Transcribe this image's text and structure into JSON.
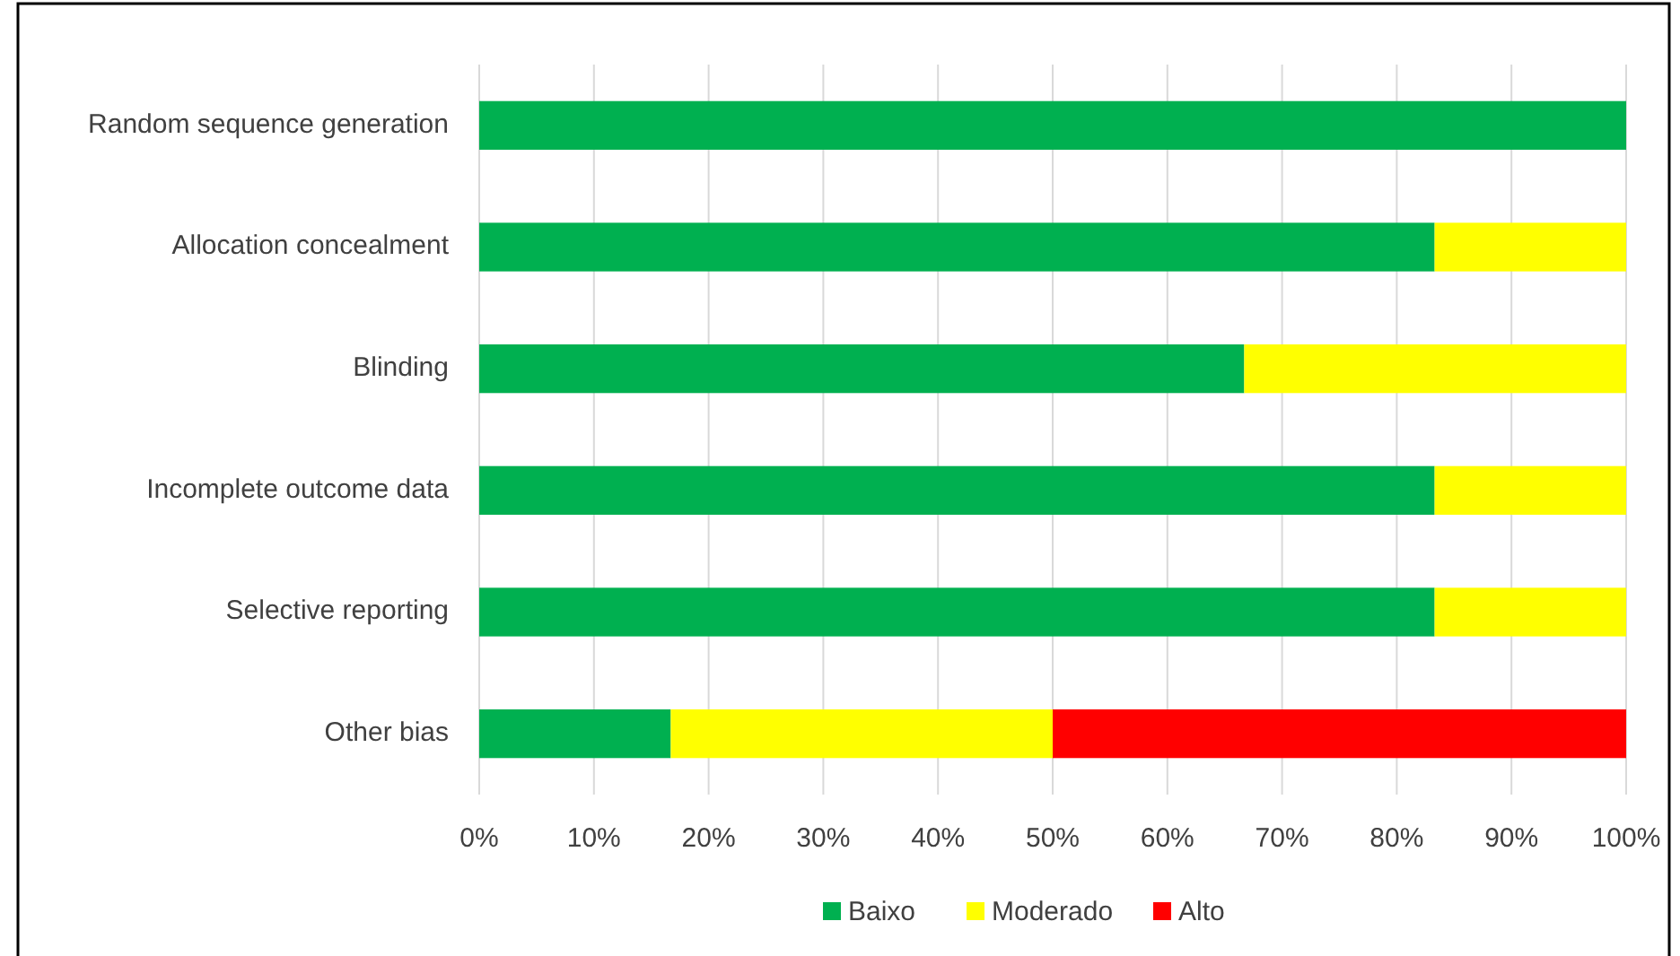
{
  "chart_data": {
    "type": "bar",
    "orientation": "horizontal",
    "stacked": true,
    "categories": [
      "Random sequence generation",
      "Allocation concealment",
      "Blinding",
      "Incomplete outcome data",
      "Selective reporting",
      "Other bias"
    ],
    "series": [
      {
        "name": "Baixo",
        "color": "#00b050",
        "values": [
          100,
          83.3,
          66.7,
          83.3,
          83.3,
          16.7
        ]
      },
      {
        "name": "Moderado",
        "color": "#ffff00",
        "values": [
          0,
          16.7,
          33.3,
          16.7,
          16.7,
          33.3
        ]
      },
      {
        "name": "Alto",
        "color": "#ff0000",
        "values": [
          0,
          0,
          0,
          0,
          0,
          50
        ]
      }
    ],
    "xlim": [
      0,
      100
    ],
    "xticks": [
      {
        "value": 0,
        "label": "0%"
      },
      {
        "value": 10,
        "label": "10%"
      },
      {
        "value": 20,
        "label": "20%"
      },
      {
        "value": 30,
        "label": "30%"
      },
      {
        "value": 40,
        "label": "40%"
      },
      {
        "value": 50,
        "label": "50%"
      },
      {
        "value": 60,
        "label": "60%"
      },
      {
        "value": 70,
        "label": "70%"
      },
      {
        "value": 80,
        "label": "80%"
      },
      {
        "value": 90,
        "label": "90%"
      },
      {
        "value": 100,
        "label": "100%"
      }
    ],
    "grid": "x",
    "legend": "bottom"
  }
}
